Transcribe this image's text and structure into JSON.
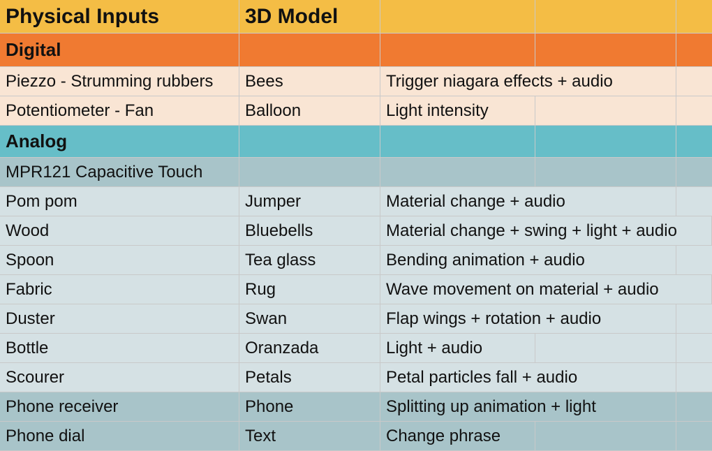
{
  "header": {
    "col1": "Physical Inputs",
    "col2": "3D Model"
  },
  "sections": {
    "digital": "Digital",
    "analog": "Analog",
    "mpr": "MPR121 Capacitive Touch"
  },
  "rows": [
    {
      "input": "Piezzo - Strumming rubbers",
      "model": "Bees",
      "action": "Trigger niagara effects + audio"
    },
    {
      "input": "Potentiometer - Fan",
      "model": "Balloon",
      "action": "Light intensity"
    },
    {
      "input": "Pom pom",
      "model": "Jumper",
      "action": "Material change + audio"
    },
    {
      "input": "Wood",
      "model": "Bluebells",
      "action": "Material change + swing + light + audio"
    },
    {
      "input": "Spoon",
      "model": "Tea glass",
      "action": "Bending animation + audio"
    },
    {
      "input": "Fabric",
      "model": "Rug",
      "action": "Wave movement on material + audio"
    },
    {
      "input": "Duster",
      "model": "Swan",
      "action": "Flap wings + rotation + audio"
    },
    {
      "input": "Bottle",
      "model": "Oranzada",
      "action": "Light + audio"
    },
    {
      "input": "Scourer",
      "model": "Petals",
      "action": "Petal particles fall + audio"
    },
    {
      "input": "Phone receiver",
      "model": "Phone",
      "action": "Splitting up animation + light"
    },
    {
      "input": "Phone dial",
      "model": "Text",
      "action": "Change phrase"
    }
  ],
  "colors": {
    "header": "#f4bd45",
    "digital": "#f07a31",
    "digital_rows": "#f9e5d4",
    "analog": "#66bec8",
    "mpr": "#a8c4c9",
    "analog_rows": "#d5e1e4",
    "phone_rows": "#a8c4c9"
  }
}
